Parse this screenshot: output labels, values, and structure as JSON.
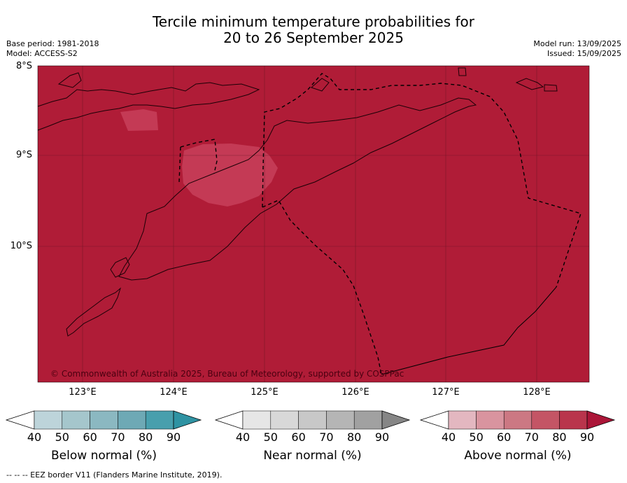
{
  "title_line1": "Tercile minimum temperature probabilities for",
  "title_line2": "20 to 26 September 2025",
  "base_period": "Base period: 1981-2018",
  "model": "Model: ACCESS-S2",
  "model_run": "Model run: 13/09/2025",
  "issued": "Issued: 15/09/2025",
  "lat_labels": [
    "8°S",
    "9°S",
    "10°S"
  ],
  "lon_labels": [
    "123°E",
    "124°E",
    "125°E",
    "126°E",
    "127°E",
    "128°E"
  ],
  "copyright": "© Commonwealth of Australia 2025, Bureau of Meteorology, supported by COSPPac",
  "colors": {
    "above_90": "#b01c37",
    "above_80": "#c43a55"
  },
  "colorbars": [
    {
      "label": "Below normal (%)",
      "ticks": [
        "40",
        "50",
        "60",
        "70",
        "80",
        "90"
      ],
      "colors": [
        "#ffffff",
        "#bdd4da",
        "#a5c6cc",
        "#8bb8c1",
        "#6ea9b5",
        "#489fad",
        "#2f93a3"
      ]
    },
    {
      "label": "Near normal (%)",
      "ticks": [
        "40",
        "50",
        "60",
        "70",
        "80",
        "90"
      ],
      "colors": [
        "#ffffff",
        "#e6e6e6",
        "#d8d8d8",
        "#c8c8c8",
        "#b5b5b5",
        "#a1a1a1",
        "#868686"
      ]
    },
    {
      "label": "Above normal (%)",
      "ticks": [
        "40",
        "50",
        "60",
        "70",
        "80",
        "90"
      ],
      "colors": [
        "#ffffff",
        "#e3b7c0",
        "#d9949f",
        "#cc7883",
        "#c45565",
        "#b9354c",
        "#ab1638"
      ]
    }
  ],
  "footnote": "-- -- -- EEZ border V11 (Flanders Marine Institute, 2019)."
}
